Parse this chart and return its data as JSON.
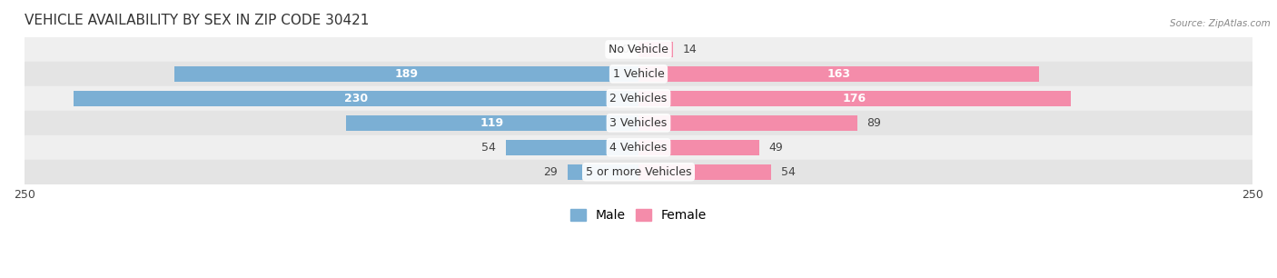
{
  "title": "VEHICLE AVAILABILITY BY SEX IN ZIP CODE 30421",
  "source": "Source: ZipAtlas.com",
  "categories": [
    "No Vehicle",
    "1 Vehicle",
    "2 Vehicles",
    "3 Vehicles",
    "4 Vehicles",
    "5 or more Vehicles"
  ],
  "male_values": [
    0,
    189,
    230,
    119,
    54,
    29
  ],
  "female_values": [
    14,
    163,
    176,
    89,
    49,
    54
  ],
  "male_color": "#7bafd4",
  "female_color": "#f48caa",
  "row_bg_colors": [
    "#efefef",
    "#e4e4e4"
  ],
  "fig_bg_color": "#ffffff",
  "axis_limit": 250,
  "title_fontsize": 11,
  "label_fontsize": 9,
  "figsize": [
    14.06,
    3.06
  ],
  "dpi": 100
}
